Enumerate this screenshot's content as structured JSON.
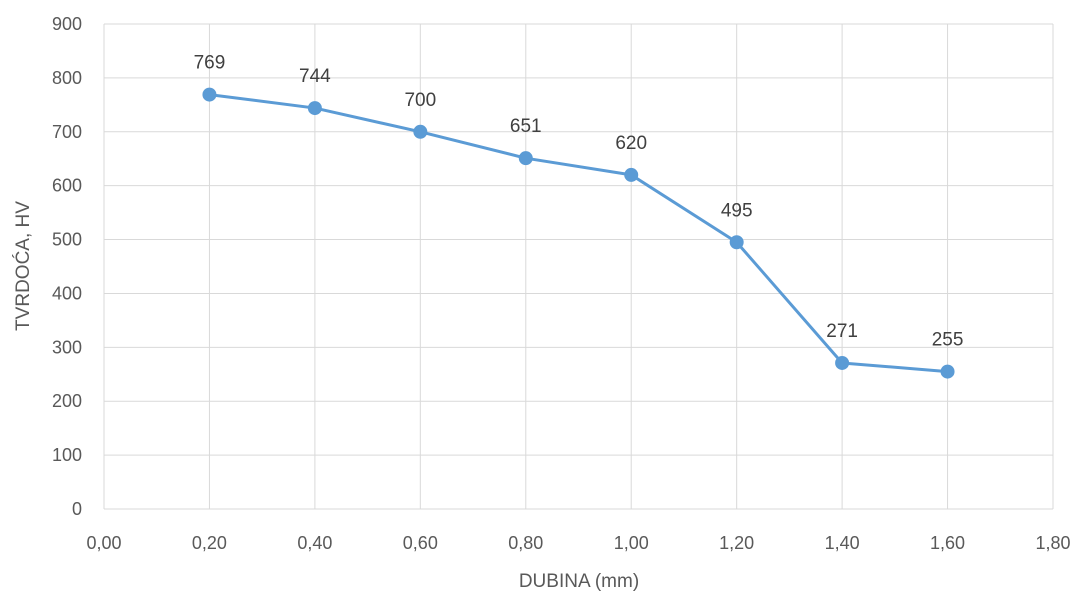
{
  "chart_data": {
    "type": "line",
    "title": "",
    "xlabel": "DUBINA (mm)",
    "ylabel": "TVRDOĆA, HV",
    "xlim": [
      0,
      1.8
    ],
    "ylim": [
      0,
      900
    ],
    "x_ticks": [
      0,
      0.2,
      0.4,
      0.6,
      0.8,
      1.0,
      1.2,
      1.4,
      1.6,
      1.8
    ],
    "x_tick_labels": [
      "0,00",
      "0,20",
      "0,40",
      "0,60",
      "0,80",
      "1,00",
      "1,20",
      "1,40",
      "1,60",
      "1,80"
    ],
    "y_ticks": [
      0,
      100,
      200,
      300,
      400,
      500,
      600,
      700,
      800,
      900
    ],
    "y_tick_labels": [
      "0",
      "100",
      "200",
      "300",
      "400",
      "500",
      "600",
      "700",
      "800",
      "900"
    ],
    "grid": true,
    "legend": "none",
    "series": [
      {
        "color": "#5B9BD5",
        "x": [
          0.2,
          0.4,
          0.6,
          0.8,
          1.0,
          1.2,
          1.4,
          1.6
        ],
        "y": [
          769,
          744,
          700,
          651,
          620,
          495,
          271,
          255
        ],
        "labels": [
          "769",
          "744",
          "700",
          "651",
          "620",
          "495",
          "271",
          "255"
        ]
      }
    ]
  }
}
